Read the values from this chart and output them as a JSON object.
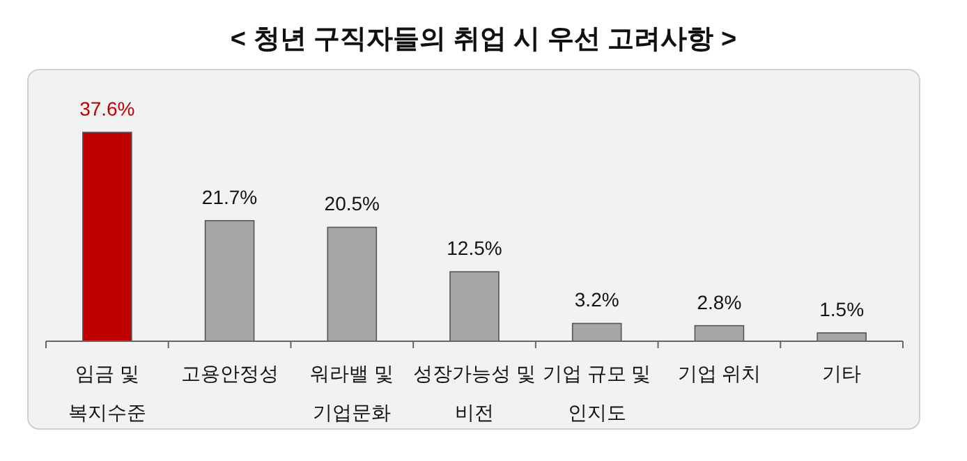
{
  "chart_data": {
    "type": "bar",
    "title": "< 청년 구직자들의 취업 시 우선 고려사항 >",
    "categories": [
      "임금 및\n복지수준",
      "고용안정성",
      "워라밸 및\n기업문화",
      "성장가능성 및\n비전",
      "기업 규모 및\n인지도",
      "기업 위치",
      "기타"
    ],
    "values": [
      37.6,
      21.7,
      20.5,
      12.5,
      3.2,
      2.8,
      1.5
    ],
    "value_labels": [
      "37.6%",
      "21.7%",
      "20.5%",
      "12.5%",
      "3.2%",
      "2.8%",
      "1.5%"
    ],
    "colors": [
      "#c00000",
      "#a6a6a6",
      "#a6a6a6",
      "#a6a6a6",
      "#a6a6a6",
      "#a6a6a6",
      "#a6a6a6"
    ]
  }
}
